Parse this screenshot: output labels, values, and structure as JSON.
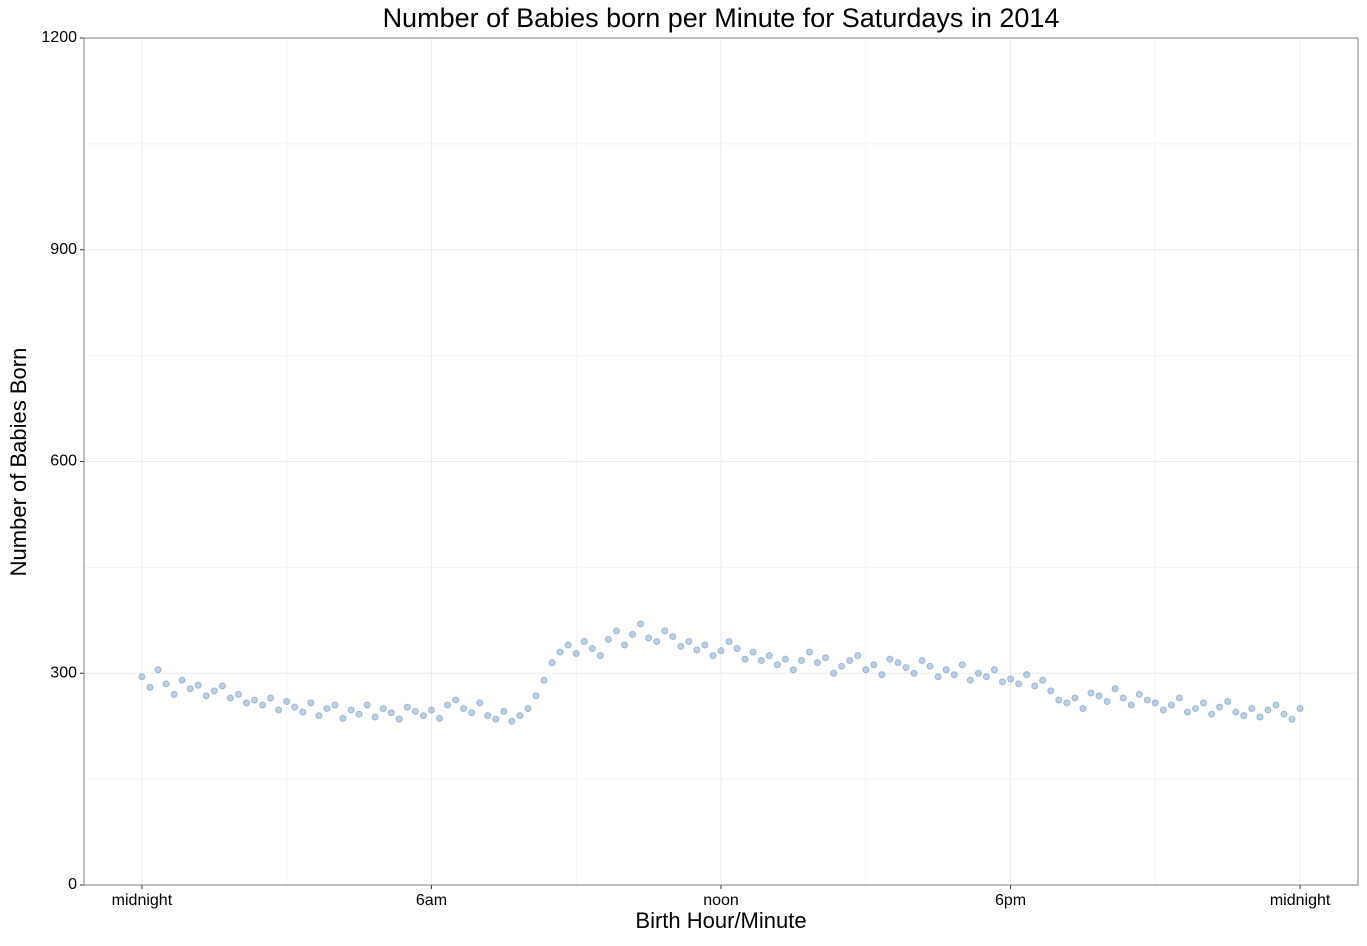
{
  "chart_data": {
    "type": "scatter",
    "title": "Number of Babies born per Minute for Saturdays in 2014",
    "x_label": "Birth Hour/Minute",
    "y_label": "Number of Babies Born",
    "color": "#5b8ac0",
    "grid": true,
    "xlim": [
      -72,
      1512
    ],
    "ylim": [
      0,
      1200
    ],
    "xticks": [
      {
        "value": 0,
        "label": "midnight"
      },
      {
        "value": 360,
        "label": "6am"
      },
      {
        "value": 720,
        "label": "noon"
      },
      {
        "value": 1080,
        "label": "6pm"
      },
      {
        "value": 1440,
        "label": "midnight"
      }
    ],
    "yticks": [
      0,
      300,
      600,
      900,
      1200
    ],
    "minor_xticks": [
      180,
      540,
      900,
      1260
    ],
    "minor_yticks": [
      150,
      450,
      750,
      1050
    ],
    "x": [
      0,
      10,
      20,
      30,
      40,
      50,
      60,
      70,
      80,
      90,
      100,
      110,
      120,
      130,
      140,
      150,
      160,
      170,
      180,
      190,
      200,
      210,
      220,
      230,
      240,
      250,
      260,
      270,
      280,
      290,
      300,
      310,
      320,
      330,
      340,
      350,
      360,
      370,
      380,
      390,
      400,
      410,
      420,
      430,
      440,
      450,
      460,
      470,
      480,
      490,
      500,
      510,
      520,
      530,
      540,
      550,
      560,
      570,
      580,
      590,
      600,
      610,
      620,
      630,
      640,
      650,
      660,
      670,
      680,
      690,
      700,
      710,
      720,
      730,
      740,
      750,
      760,
      770,
      780,
      790,
      800,
      810,
      820,
      830,
      840,
      850,
      860,
      870,
      880,
      890,
      900,
      910,
      920,
      930,
      940,
      950,
      960,
      970,
      980,
      990,
      1000,
      1010,
      1020,
      1030,
      1040,
      1050,
      1060,
      1070,
      1080,
      1090,
      1100,
      1110,
      1120,
      1130,
      1140,
      1150,
      1160,
      1170,
      1180,
      1190,
      1200,
      1210,
      1220,
      1230,
      1240,
      1250,
      1260,
      1270,
      1280,
      1290,
      1300,
      1310,
      1320,
      1330,
      1340,
      1350,
      1360,
      1370,
      1380,
      1390,
      1400,
      1410,
      1420,
      1430,
      1440
    ],
    "values": [
      295,
      280,
      305,
      285,
      270,
      290,
      278,
      283,
      268,
      275,
      282,
      265,
      270,
      258,
      262,
      255,
      265,
      248,
      260,
      252,
      245,
      258,
      240,
      250,
      255,
      236,
      248,
      242,
      255,
      238,
      250,
      244,
      235,
      252,
      246,
      240,
      248,
      236,
      255,
      262,
      250,
      244,
      258,
      240,
      235,
      246,
      232,
      240,
      250,
      268,
      290,
      315,
      330,
      340,
      328,
      345,
      335,
      325,
      348,
      360,
      340,
      355,
      370,
      350,
      345,
      360,
      352,
      338,
      345,
      333,
      340,
      325,
      332,
      345,
      335,
      320,
      330,
      318,
      325,
      312,
      320,
      305,
      318,
      330,
      315,
      322,
      300,
      310,
      318,
      325,
      305,
      312,
      298,
      320,
      315,
      308,
      300,
      318,
      310,
      295,
      305,
      298,
      312,
      290,
      300,
      295,
      305,
      288,
      292,
      285,
      298,
      282,
      290,
      275,
      262,
      258,
      265,
      250,
      272,
      268,
      260,
      278,
      265,
      255,
      270,
      262,
      258,
      248,
      255,
      265,
      245,
      250,
      258,
      242,
      252,
      260,
      245,
      240,
      250,
      238,
      248,
      255,
      242,
      235,
      250
    ]
  }
}
